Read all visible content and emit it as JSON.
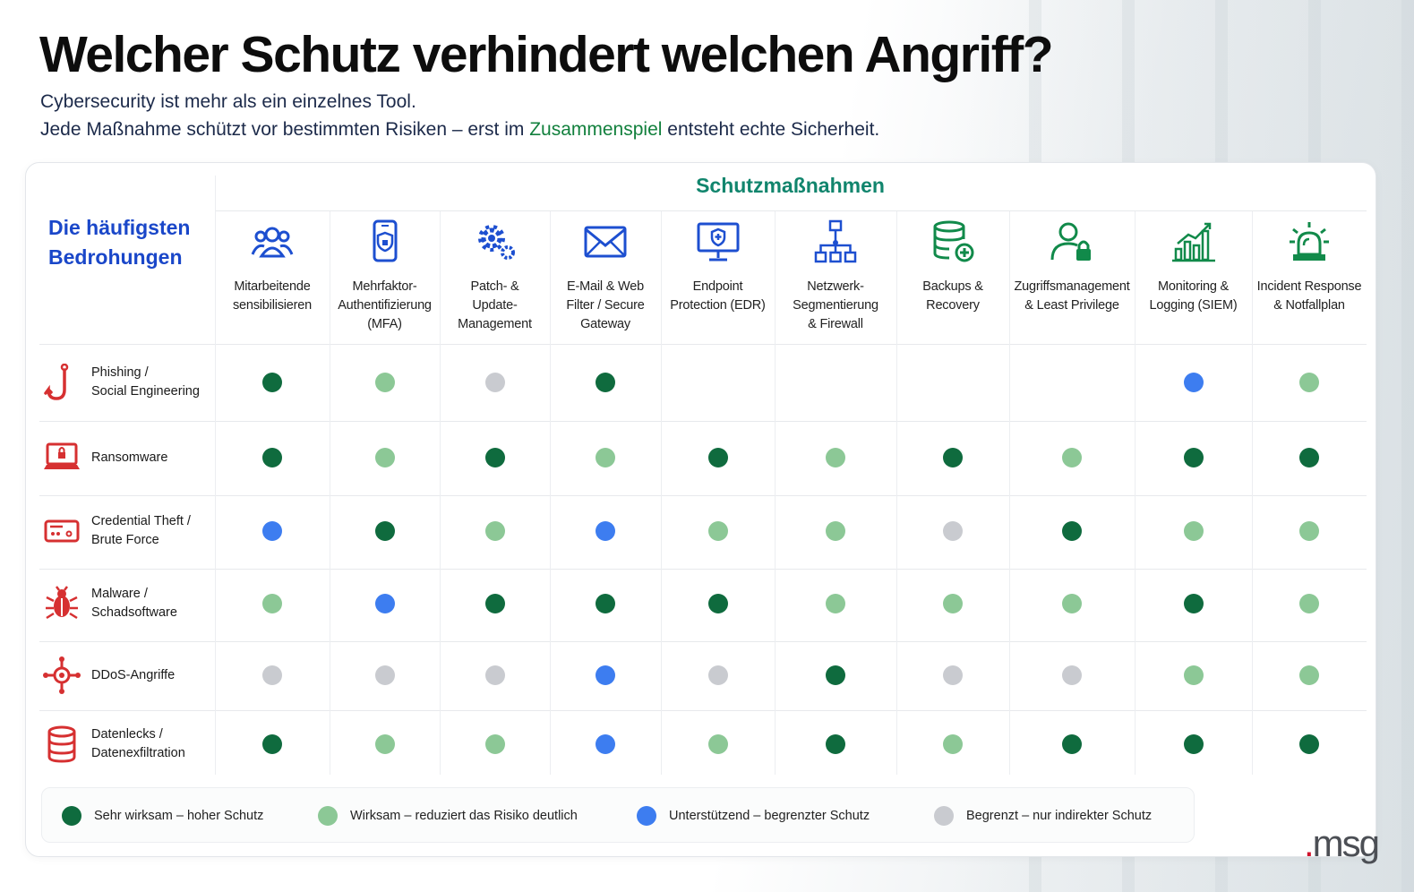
{
  "title": "Welcher Schutz verhindert welchen Angriff?",
  "subtitle_line1": "Cybersecurity ist mehr als ein einzelnes Tool.",
  "subtitle_line2_pre": "Jede Maßnahme schützt vor bestimmten Risiken – erst im ",
  "subtitle_line2_hl": "Zusammenspiel",
  "subtitle_line2_post": " entsteht echte Sicherheit.",
  "row_header": "Die häufigsten Bedrohungen",
  "column_group": "Schutzmaßnahmen",
  "colors": {
    "very_effective": "#0f6b3e",
    "effective": "#8cc896",
    "supporting": "#3d7df0",
    "limited": "#c9cbd0",
    "icon_green": "#118a4a",
    "icon_blue": "#1d4fd0",
    "icon_red": "#d63031"
  },
  "measures": [
    {
      "label": "Mitarbeitende\nsensibilisieren",
      "icon": "people-icon"
    },
    {
      "label": "Mehrfaktor-\nAuthentifizierung\n(MFA)",
      "icon": "phone-lock-icon"
    },
    {
      "label": "Patch- &\nUpdate-\nManagement",
      "icon": "gears-icon"
    },
    {
      "label": "E-Mail & Web\nFilter / Secure\nGateway",
      "icon": "envelope-icon"
    },
    {
      "label": "Endpoint\nProtection (EDR)",
      "icon": "monitor-shield-icon"
    },
    {
      "label": "Netzwerk-\nSegmentierung\n& Firewall",
      "icon": "network-icon"
    },
    {
      "label": "Backups &\nRecovery",
      "icon": "database-plus-icon"
    },
    {
      "label": "Zugriffsmanagement\n& Least Privilege",
      "icon": "user-lock-icon"
    },
    {
      "label": "Monitoring &\nLogging (SIEM)",
      "icon": "bar-chart-icon"
    },
    {
      "label": "Incident Response\n& Notfallplan",
      "icon": "alarm-light-icon"
    }
  ],
  "threats": [
    {
      "label": "Phishing /\nSocial Engineering",
      "icon": "fishhook-icon",
      "ratings": [
        "very_effective",
        "effective",
        "limited",
        "very_effective",
        null,
        null,
        null,
        null,
        "supporting",
        "effective"
      ]
    },
    {
      "label": "Ransomware",
      "icon": "laptop-lock-icon",
      "ratings": [
        "very_effective",
        "effective",
        "very_effective",
        "effective",
        "very_effective",
        "effective",
        "very_effective",
        "effective",
        "very_effective",
        "very_effective"
      ]
    },
    {
      "label": "Credential Theft /\nBrute Force",
      "icon": "password-card-icon",
      "ratings": [
        "supporting",
        "very_effective",
        "effective",
        "supporting",
        "effective",
        "effective",
        "limited",
        "very_effective",
        "effective",
        "effective"
      ]
    },
    {
      "label": "Malware /\nSchadsoftware",
      "icon": "bug-icon",
      "ratings": [
        "effective",
        "supporting",
        "very_effective",
        "very_effective",
        "very_effective",
        "effective",
        "effective",
        "effective",
        "very_effective",
        "effective"
      ]
    },
    {
      "label": "DDoS-Angriffe",
      "icon": "ddos-icon",
      "ratings": [
        "limited",
        "limited",
        "limited",
        "supporting",
        "limited",
        "very_effective",
        "limited",
        "limited",
        "effective",
        "effective"
      ]
    },
    {
      "label": "Datenlecks /\nDatenexfiltration",
      "icon": "database-icon",
      "ratings": [
        "very_effective",
        "effective",
        "effective",
        "supporting",
        "effective",
        "very_effective",
        "effective",
        "very_effective",
        "very_effective",
        "very_effective"
      ]
    }
  ],
  "legend": [
    {
      "key": "very_effective",
      "label": "Sehr wirksam – hoher Schutz"
    },
    {
      "key": "effective",
      "label": "Wirksam – reduziert das Risiko deutlich"
    },
    {
      "key": "supporting",
      "label": "Unterstützend – begrenzter Schutz"
    },
    {
      "key": "limited",
      "label": "Begrenzt – nur indirekter Schutz"
    }
  ],
  "logo_text": "msg"
}
